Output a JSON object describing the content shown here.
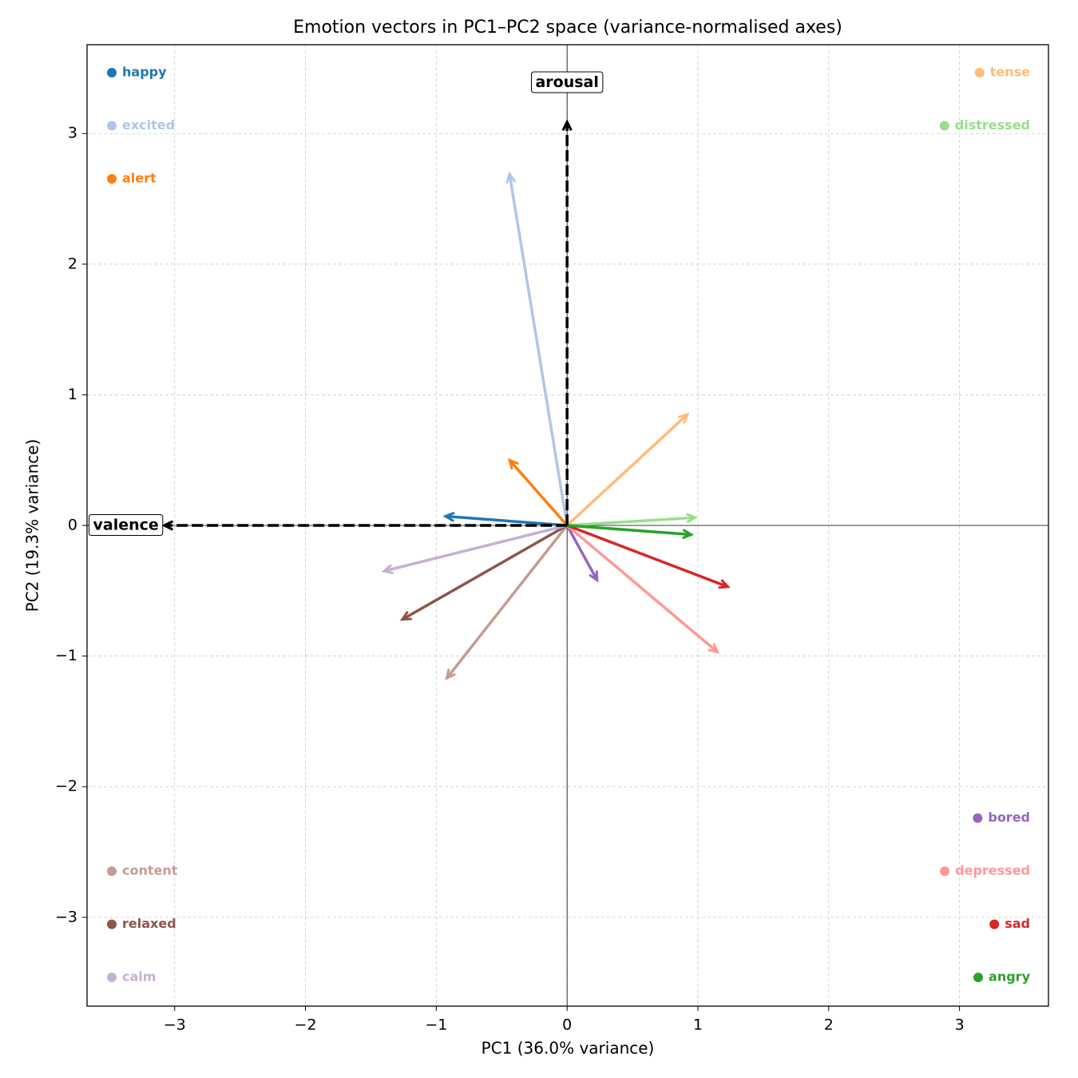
{
  "chart_data": {
    "type": "quiver",
    "title": "Emotion vectors in PC1–PC2 space  (variance-normalised axes)",
    "x_label": "PC1  (36.0% variance)",
    "y_label": "PC2  (19.3% variance)",
    "xlim": [
      -3.67,
      3.68
    ],
    "ylim": [
      -3.68,
      3.68
    ],
    "xticks": [
      {
        "value": -3,
        "label": "−3"
      },
      {
        "value": -2,
        "label": "−2"
      },
      {
        "value": -1,
        "label": "−1"
      },
      0,
      1,
      2,
      3
    ],
    "yticks": [
      {
        "value": -3,
        "label": "−3"
      },
      {
        "value": -2,
        "label": "−2"
      },
      {
        "value": -1,
        "label": "−1"
      },
      0,
      1,
      2,
      3
    ],
    "grid": true,
    "series": [
      {
        "name": "happy",
        "color": "#1f77b4",
        "x": -0.93,
        "y": 0.07,
        "legend_corner": "upper left"
      },
      {
        "name": "excited",
        "color": "#aec7e8",
        "x": -0.44,
        "y": 2.69,
        "legend_corner": "upper left"
      },
      {
        "name": "alert",
        "color": "#ff7f0e",
        "x": -0.44,
        "y": 0.5,
        "legend_corner": "upper left"
      },
      {
        "name": "content",
        "color": "#c49c94",
        "x": -0.92,
        "y": -1.17,
        "legend_corner": "lower left"
      },
      {
        "name": "relaxed",
        "color": "#8c564b",
        "x": -1.26,
        "y": -0.72,
        "legend_corner": "lower left"
      },
      {
        "name": "calm",
        "color": "#c5b0d5",
        "x": -1.4,
        "y": -0.35,
        "legend_corner": "lower left"
      },
      {
        "name": "tense",
        "color": "#ffbb78",
        "x": 0.92,
        "y": 0.85,
        "legend_corner": "upper right"
      },
      {
        "name": "distressed",
        "color": "#98df8a",
        "x": 0.98,
        "y": 0.06,
        "legend_corner": "upper right"
      },
      {
        "name": "bored",
        "color": "#9467bd",
        "x": 0.23,
        "y": -0.42,
        "legend_corner": "lower right"
      },
      {
        "name": "depressed",
        "color": "#ff9896",
        "x": 1.15,
        "y": -0.97,
        "legend_corner": "lower right"
      },
      {
        "name": "sad",
        "color": "#d62728",
        "x": 1.23,
        "y": -0.47,
        "legend_corner": "lower right"
      },
      {
        "name": "angry",
        "color": "#2ca02c",
        "x": 0.95,
        "y": -0.07,
        "legend_corner": "lower right"
      }
    ],
    "reference_axes": [
      {
        "label": "valence",
        "color": "#000000",
        "x": -3.08,
        "y": 0
      },
      {
        "label": "arousal",
        "color": "#000000",
        "x": 0,
        "y": 3.09
      }
    ]
  }
}
